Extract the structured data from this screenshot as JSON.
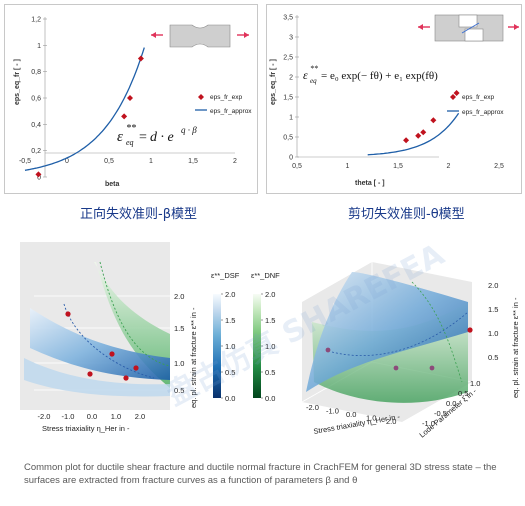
{
  "captions": {
    "left": "正向失效准则-β模型",
    "right": "剪切失效准则-θ模型"
  },
  "footer_text": "Common plot for ductile shear fracture and ductile normal fracture in CrachFEM for general 3D stress state – the surfaces are extracted from fracture curves as a function of parameters β and θ",
  "watermark": "盘古仿真 SHAREFEA",
  "chart_data": [
    {
      "type": "scatter",
      "title": "",
      "xlabel": "beta",
      "ylabel": "eps_eq_fr [ - ]",
      "xlim": [
        -0.5,
        2
      ],
      "ylim": [
        0,
        1.2
      ],
      "x_ticks": [
        "-0,5",
        "0",
        "0,5",
        "1",
        "1,5",
        "2"
      ],
      "y_ticks": [
        "0",
        "0,2",
        "0,4",
        "0,6",
        "0,8",
        "1",
        "1,2"
      ],
      "formula": "ε_eq** = d·e^(q·β)",
      "series": [
        {
          "name": "eps_fr_exp",
          "kind": "scatter",
          "color": "#c0121e",
          "x": [
            -0.34,
            0.68,
            0.75,
            0.88
          ],
          "y": [
            0.02,
            0.46,
            0.6,
            0.9
          ]
        },
        {
          "name": "eps_fr_approx",
          "kind": "line",
          "color": "#1f5fa8",
          "d": 0.145,
          "q": 2.08
        }
      ],
      "legend": "right"
    },
    {
      "type": "scatter",
      "title": "",
      "xlabel": "theta [ - ]",
      "ylabel": "eps_eq_fr [ - ]",
      "xlim": [
        0.5,
        2.5
      ],
      "ylim": [
        0,
        3.5
      ],
      "x_ticks": [
        "0,5",
        "1",
        "1,5",
        "2",
        "2,5"
      ],
      "y_ticks": [
        "0",
        "0,5",
        "1",
        "1,5",
        "2",
        "2,5",
        "3",
        "3,5"
      ],
      "formula": "ε_eq** = e₀·exp(−fθ) + e₁·exp(fθ)",
      "series": [
        {
          "name": "eps_fr_exp",
          "kind": "scatter",
          "color": "#c0121e",
          "x": [
            1.58,
            1.7,
            1.75,
            1.85,
            2.08
          ],
          "y": [
            0.42,
            0.53,
            0.62,
            0.92,
            1.6
          ]
        },
        {
          "name": "eps_fr_approx",
          "kind": "line",
          "color": "#1f5fa8",
          "e0": 0.5,
          "e1": 0.00075,
          "f": 3.47
        }
      ],
      "legend": "right"
    },
    {
      "type": "surface",
      "title": "",
      "xlabel": "Stress triaxiality η_Her in -",
      "ylabel": "eq. pl. strain at fracture ε** in -",
      "x_ticks": [
        "-2.0",
        "-1.0",
        "0.0",
        "1.0",
        "2.0"
      ],
      "y_ticks": [
        "0.5",
        "1.0",
        "1.5",
        "2.0"
      ],
      "points": [
        {
          "x": -1.0,
          "y": 1.72
        },
        {
          "x": 0.0,
          "y": 0.55
        },
        {
          "x": 1.0,
          "y": 0.98
        },
        {
          "x": 1.3,
          "y": 0.48
        },
        {
          "x": 1.9,
          "y": 0.62
        }
      ]
    },
    {
      "type": "colorbar",
      "label": "ε**_DSF",
      "ticks": [
        "0.0",
        "0.5",
        "1.0",
        "1.5",
        "2.0"
      ],
      "colors": [
        "#08306b",
        "#2171b5",
        "#6baed6",
        "#c6dbef",
        "#f7fbff"
      ]
    },
    {
      "type": "colorbar",
      "label": "ε**_DNF",
      "ticks": [
        "0.0",
        "0.5",
        "1.0",
        "1.5",
        "2.0"
      ],
      "colors": [
        "#00441b",
        "#238b45",
        "#74c476",
        "#c7e9c0",
        "#f7fcf5"
      ]
    },
    {
      "type": "surface",
      "title": "",
      "xlabel": "Stress triaxiality η_Her in -",
      "ylabel": "Lode Parameter ξ in -",
      "zlabel": "eq. pl. strain at fracture ε** in -",
      "x_ticks": [
        "-2.0",
        "-1.0",
        "0.0",
        "1.0",
        "2.0"
      ],
      "y_ticks": [
        "-1.0",
        "-0.5",
        "0.0",
        "0.5",
        "1.0"
      ],
      "z_ticks": [
        "0.5",
        "1.0",
        "1.5",
        "2.0"
      ]
    }
  ]
}
